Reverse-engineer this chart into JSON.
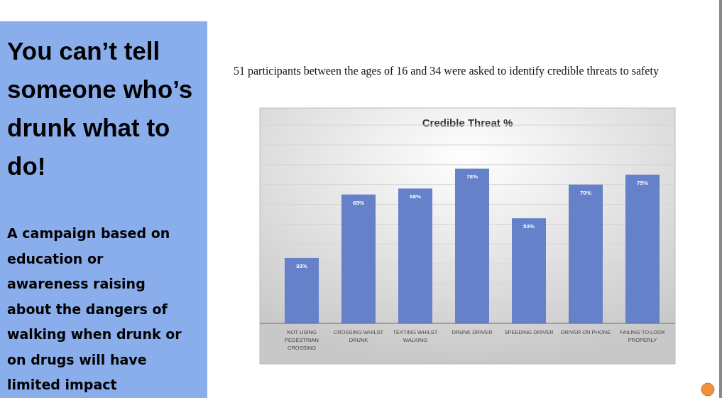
{
  "chart_data": {
    "type": "bar",
    "title": "Credible Threat %",
    "subtitle": "51 participants between the ages of 16 and 34 were asked to identify credible threats to safety",
    "annotations": [
      "You can’t tell someone who’s drunk what to do!",
      "A campaign based on education or awareness raising about the dangers of walking when drunk or on drugs will have limited impact"
    ],
    "categories": [
      "NOT USING PEDESTRIAN CROSSING",
      "CROSSING WHILST DRUNK",
      "TEXTING WHILST WALKING",
      "DRUNK DRIVER",
      "SPEEDING DRIVER",
      "DRIVER ON PHONE",
      "FAILING TO LOOK PROPERLY"
    ],
    "values": [
      33,
      65,
      68,
      78,
      53,
      70,
      75
    ],
    "value_labels": [
      "33%",
      "65%",
      "68%",
      "78%",
      "53%",
      "70%",
      "75%"
    ],
    "color": "#6481c9",
    "ylim": [
      0,
      100
    ],
    "yticks": [
      {
        "value": 0,
        "label": null
      },
      {
        "value": 10,
        "label": null
      },
      {
        "value": 20,
        "label": null
      },
      {
        "value": 30,
        "label": null
      },
      {
        "value": 40,
        "label": null
      },
      {
        "value": 50,
        "label": null
      },
      {
        "value": 60,
        "label": null
      },
      {
        "value": 70,
        "label": null
      },
      {
        "value": 80,
        "label": null
      },
      {
        "value": 90,
        "label": null
      },
      {
        "value": 100,
        "label": null
      }
    ],
    "grid": true,
    "tick_labels": "x"
  }
}
